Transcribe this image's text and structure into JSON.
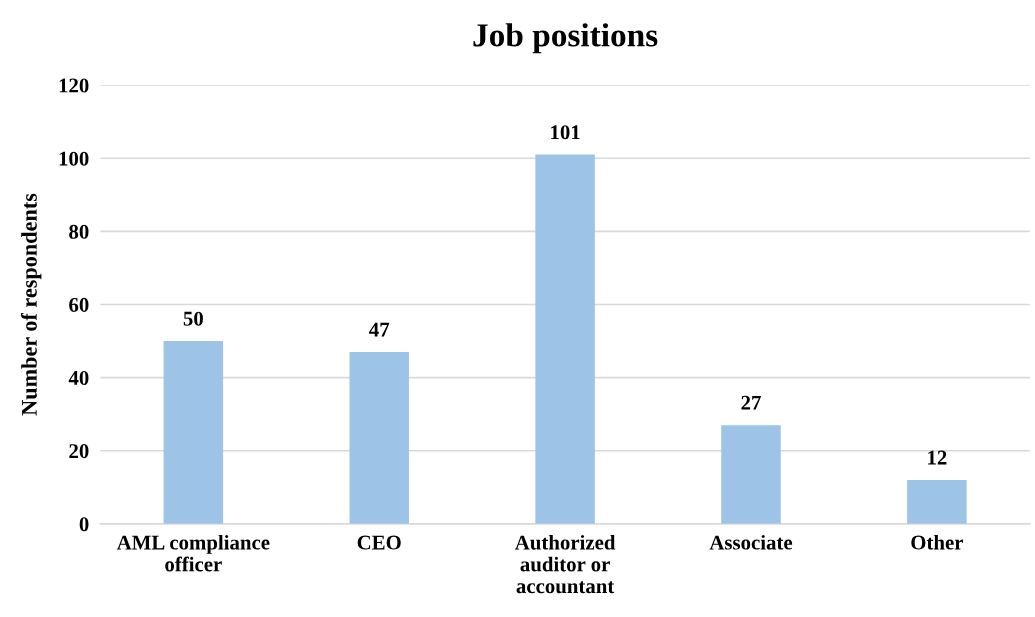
{
  "chart_data": {
    "type": "bar",
    "title": "Job positions",
    "ylabel": "Number of respondents",
    "categories": [
      "AML compliance\nofficer",
      "CEO",
      "Authorized\nauditor or\naccountant",
      "Associate",
      "Other"
    ],
    "values": [
      50,
      47,
      101,
      27,
      12
    ],
    "color": "#9dc3e6",
    "ylim": [
      0,
      120
    ],
    "yticks": [
      0,
      20,
      40,
      60,
      80,
      100,
      120
    ],
    "grid": "y",
    "data_labels": true,
    "legend": false
  }
}
